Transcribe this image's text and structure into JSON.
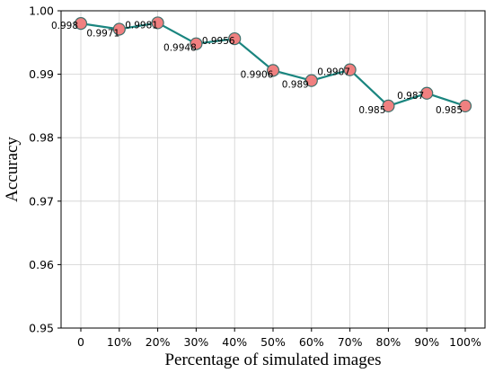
{
  "chart_data": {
    "type": "line",
    "xlabel": "Percentage of simulated images",
    "ylabel": "Accuracy",
    "categories": [
      "0",
      "10%",
      "20%",
      "30%",
      "40%",
      "50%",
      "60%",
      "70%",
      "80%",
      "90%",
      "100%"
    ],
    "series": [
      {
        "values": [
          0.998,
          0.9971,
          0.9981,
          0.9948,
          0.9956,
          0.9906,
          0.989,
          0.9907,
          0.985,
          0.987,
          0.985
        ],
        "labels": [
          "0.998",
          "0.9971",
          "0.9981",
          "0.9948",
          "0.9956",
          "0.9906",
          "0.989",
          "0.9907",
          "0.985",
          "0.987",
          "0.985"
        ],
        "line_color": "#1a857f",
        "marker_color": "#f08080",
        "marker_edge_color": "#3f6f6b"
      }
    ],
    "ylim": [
      0.95,
      1.0
    ],
    "yticks": [
      "0.95",
      "0.96",
      "0.97",
      "0.98",
      "0.99",
      "1.00"
    ],
    "grid": true
  }
}
